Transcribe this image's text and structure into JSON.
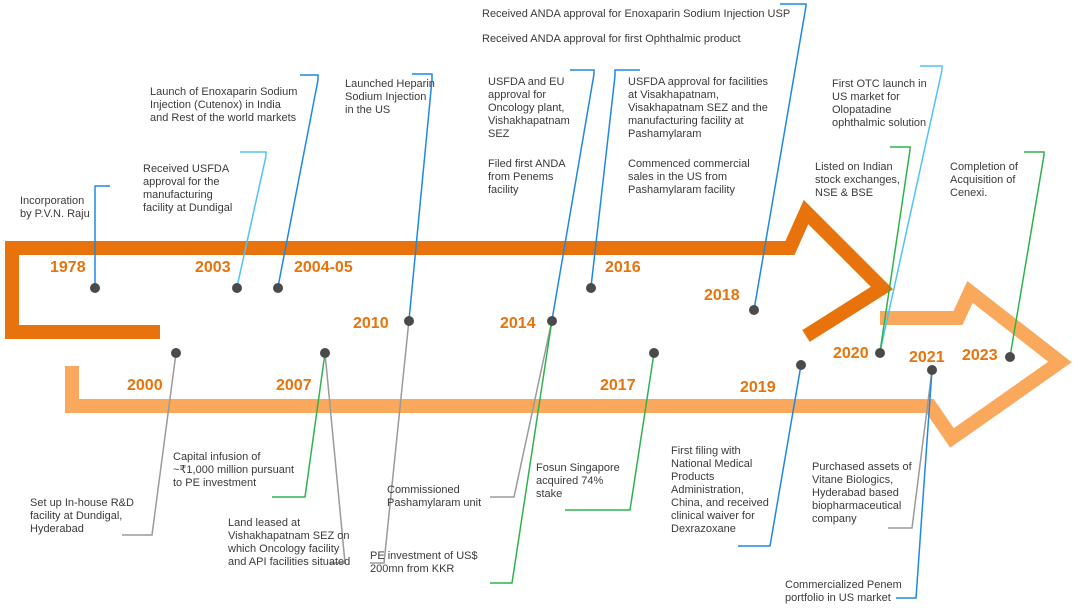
{
  "colors": {
    "arrow_upper": "#e8730c",
    "arrow_lower": "#f9a85c",
    "year_text": "#e8730c",
    "dot": "#4a4a4a",
    "connector_blue": "#1e88e5",
    "connector_light_blue": "#4fc3f7",
    "connector_green": "#2db34a",
    "connector_gray": "#9a9a9a"
  },
  "years": {
    "y1978": "1978",
    "y2000": "2000",
    "y2003": "2003",
    "y2004_05": "2004-05",
    "y2007": "2007",
    "y2010": "2010",
    "y2014": "2014",
    "y2016": "2016",
    "y2017": "2017",
    "y2018": "2018",
    "y2019": "2019",
    "y2020": "2020",
    "y2021": "2021",
    "y2023": "2023"
  },
  "events": {
    "e1978": "Incorporation\nby P.V.N. Raju",
    "e2000": "Set up In-house R&D\nfacility at Dundigal,\nHyderabad",
    "e2003": "Received USFDA\napproval for the\nmanufacturing\nfacility at Dundigal",
    "e2004_05": "Launch of Enoxaparin Sodium\nInjection (Cutenox) in India\nand Rest of the world markets",
    "e2007_a": "Capital infusion of\n~₹1,000 million pursuant\nto PE investment",
    "e2007_b": "Land leased at\nVishakhapatnam SEZ on\nwhich Oncology facility\nand API facilities situated",
    "e2010_a": "Launched Heparin\nSodium Injection\nin the US",
    "e2010_b": "PE investment of US$\n200mn from KKR",
    "e2014_a": "USFDA and EU\napproval for\nOncology plant,\nVishakhapatnam\nSEZ",
    "e2014_b": "Filed first ANDA\nfrom Penems\nfacility",
    "e2014_c": "Commissioned\nPashamylaram unit",
    "e2016_a": "USFDA approval for facilities\nat Visakhapatnam,\nVisakhapatnam SEZ and the\nmanufacturing facility at\nPashamylaram",
    "e2016_b": "Commenced commercial\nsales in the US from\nPashamylaram facility",
    "e2017": "Fosun Singapore\nacquired 74%\nstake",
    "e2018_a": "Received ANDA approval for Enoxaparin Sodium Injection USP",
    "e2018_b": "Received ANDA approval for first Ophthalmic product",
    "e2019": "First filing with\nNational Medical\nProducts\nAdministration,\nChina, and received\nclinical waiver for\nDexrazoxane",
    "e2020_a": "First OTC launch in\nUS market for\nOlopatadine\nophthalmic solution",
    "e2020_b": "Listed on Indian\nstock exchanges,\nNSE & BSE",
    "e2021_a": "Purchased assets of\nVitane Biologics,\nHyderabad based\nbiopharmaceutical\ncompany",
    "e2021_b": "Commercialized Penem\nportfolio in US market",
    "e2023": "Completion of\nAcquisition of\nCenexi."
  }
}
